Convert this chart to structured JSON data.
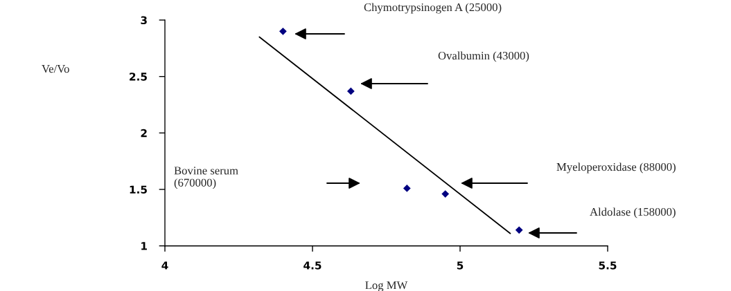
{
  "chart_data": {
    "type": "scatter",
    "xlabel": "Log MW",
    "series": [
      {
        "color": "#000080",
        "marker": "diamond",
        "x": [
          4.4,
          4.63,
          4.82,
          4.95,
          5.2
        ],
        "values": [
          2.9,
          2.37,
          1.51,
          1.46,
          1.14
        ]
      },
      {
        "type": "line",
        "color": "#000000",
        "marker": "none",
        "line_style": "solid",
        "x": [
          4.32,
          5.17
        ],
        "values": [
          2.85,
          1.11
        ]
      }
    ],
    "annotations": [
      "Ve/Vo",
      "Chymotrypsinogen A (25000)",
      "Ovalbumin (43000)",
      "Bovine serum\n(670000)",
      "Myeloperoxidase (88000)",
      "Aldolase (158000)"
    ],
    "xlim": [
      4,
      5.5
    ],
    "xticks": [
      4,
      4.5,
      5,
      5.5
    ],
    "ylim": [
      1,
      3
    ],
    "yticks": [
      1,
      1.5,
      2,
      2.5,
      3
    ],
    "grid": false
  }
}
